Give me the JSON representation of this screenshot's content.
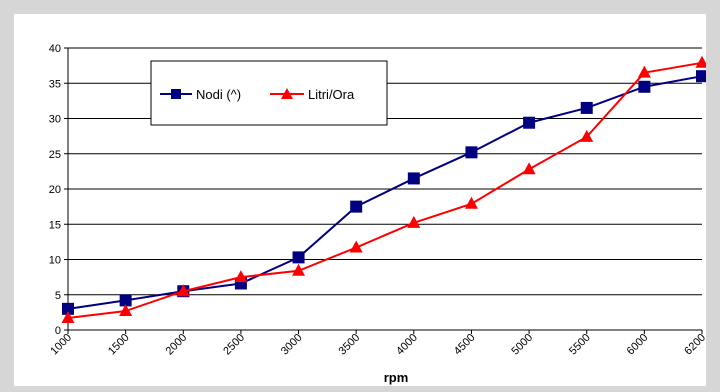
{
  "chart_data": {
    "type": "line",
    "categories": [
      "1000",
      "1500",
      "2000",
      "2500",
      "3000",
      "3500",
      "4000",
      "4500",
      "5000",
      "5500",
      "6000",
      "6200"
    ],
    "series": [
      {
        "name": "Nodi (^)",
        "color": "#000080",
        "marker": "square",
        "values": [
          3.0,
          4.2,
          5.5,
          6.6,
          10.3,
          17.5,
          21.5,
          25.2,
          29.4,
          31.5,
          34.5,
          36.0
        ]
      },
      {
        "name": "Litri/Ora",
        "color": "#ff0000",
        "marker": "triangle",
        "values": [
          1.7,
          2.7,
          5.5,
          7.5,
          8.4,
          11.7,
          15.2,
          17.9,
          22.8,
          27.4,
          36.5,
          37.9
        ]
      }
    ],
    "yticks": [
      0,
      5,
      10,
      15,
      20,
      25,
      30,
      35,
      40
    ],
    "ylim": [
      0,
      40
    ],
    "xlabel": "rpm",
    "ylabel": "",
    "title": "",
    "grid": "horizontal",
    "legend_placement": "top-left"
  }
}
